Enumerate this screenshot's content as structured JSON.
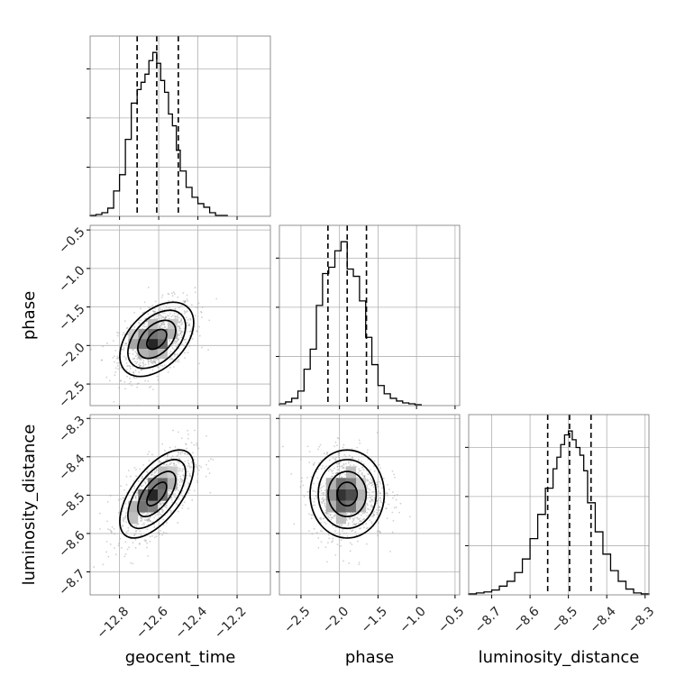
{
  "chart_data": {
    "type": "corner",
    "parameters": [
      "geocent_time",
      "phase",
      "luminosity_distance"
    ],
    "axis_labels": {
      "x": [
        "geocent_time",
        "phase",
        "luminosity_distance"
      ],
      "y": [
        "phase",
        "luminosity_distance"
      ]
    },
    "ranges": {
      "geocent_time": [
        -12.95,
        -12.03
      ],
      "phase": [
        -2.78,
        -0.44
      ],
      "luminosity_distance": [
        -8.76,
        -8.29
      ]
    },
    "ticks": {
      "geocent_time": [
        -12.8,
        -12.6,
        -12.4,
        -12.2
      ],
      "phase": [
        -2.5,
        -2.0,
        -1.5,
        -1.0,
        -0.5
      ],
      "luminosity_distance": [
        -8.7,
        -8.6,
        -8.5,
        -8.4,
        -8.3
      ]
    },
    "tick_labels": {
      "geocent_time": [
        "−12.8",
        "−12.6",
        "−12.4",
        "−12.2"
      ],
      "phase": [
        "−2.5",
        "−2.0",
        "−1.5",
        "−1.0",
        "−0.5"
      ],
      "luminosity_distance": [
        "−8.7",
        "−8.6",
        "−8.5",
        "−8.4",
        "−8.3"
      ]
    },
    "quantiles": {
      "geocent_time": [
        -12.71,
        -12.61,
        -12.5
      ],
      "phase": [
        -2.15,
        -1.9,
        -1.65
      ],
      "luminosity_distance": [
        -8.554,
        -8.497,
        -8.441
      ]
    },
    "histograms": {
      "geocent_time": {
        "edges": [
          -12.95,
          -12.92,
          -12.89,
          -12.86,
          -12.83,
          -12.8,
          -12.77,
          -12.74,
          -12.71,
          -12.69,
          -12.67,
          -12.65,
          -12.63,
          -12.61,
          -12.59,
          -12.57,
          -12.55,
          -12.53,
          -12.51,
          -12.49,
          -12.46,
          -12.43,
          -12.4,
          -12.37,
          -12.34,
          -12.31,
          -12.28,
          -12.25
        ],
        "counts": [
          1,
          2,
          4,
          9,
          28,
          46,
          85,
          125,
          140,
          148,
          157,
          172,
          181,
          169,
          150,
          137,
          113,
          100,
          73,
          50,
          32,
          21,
          14,
          10,
          4,
          1,
          1
        ]
      },
      "phase": {
        "edges": [
          -2.78,
          -2.7,
          -2.62,
          -2.54,
          -2.46,
          -2.38,
          -2.3,
          -2.22,
          -2.14,
          -2.06,
          -1.98,
          -1.9,
          -1.82,
          -1.74,
          -1.66,
          -1.58,
          -1.5,
          -1.42,
          -1.34,
          -1.26,
          -1.18,
          -1.1,
          -1.02,
          -0.94
        ],
        "counts": [
          2,
          4,
          8,
          16,
          40,
          62,
          110,
          145,
          152,
          170,
          180,
          150,
          142,
          115,
          75,
          45,
          22,
          13,
          8,
          5,
          3,
          2,
          1
        ]
      },
      "luminosity_distance": {
        "edges": [
          -8.76,
          -8.74,
          -8.72,
          -8.7,
          -8.68,
          -8.66,
          -8.64,
          -8.62,
          -8.6,
          -8.58,
          -8.56,
          -8.54,
          -8.53,
          -8.52,
          -8.51,
          -8.5,
          -8.49,
          -8.48,
          -8.47,
          -8.46,
          -8.45,
          -8.43,
          -8.41,
          -8.39,
          -8.37,
          -8.35,
          -8.33,
          -8.31,
          -8.29
        ],
        "counts": [
          1,
          2,
          3,
          5,
          9,
          14,
          23,
          37,
          58,
          83,
          110,
          130,
          142,
          155,
          165,
          169,
          160,
          152,
          144,
          128,
          95,
          65,
          42,
          25,
          14,
          6,
          2,
          1
        ]
      }
    },
    "joint": [
      {
        "x": "geocent_time",
        "y": "phase",
        "center": [
          -12.61,
          -1.92
        ],
        "sigma": [
          0.092,
          0.235
        ],
        "rho": 0.45,
        "hist_cells": [
          [
            -12.73,
            -1.98,
            0.35
          ],
          [
            -12.68,
            -1.98,
            0.55
          ],
          [
            -12.63,
            -1.98,
            0.85
          ],
          [
            -12.58,
            -1.98,
            0.6
          ],
          [
            -12.68,
            -1.85,
            0.4
          ],
          [
            -12.63,
            -1.85,
            0.55
          ],
          [
            -12.58,
            -1.85,
            0.5
          ],
          [
            -12.53,
            -1.85,
            0.3
          ],
          [
            -12.68,
            -2.11,
            0.3
          ],
          [
            -12.63,
            -2.11,
            0.35
          ],
          [
            -12.58,
            -2.11,
            0.25
          ],
          [
            -12.63,
            -1.72,
            0.25
          ],
          [
            -12.53,
            -1.72,
            0.2
          ],
          [
            -12.73,
            -1.85,
            0.2
          ]
        ]
      },
      {
        "x": "geocent_time",
        "y": "luminosity_distance",
        "center": [
          -12.61,
          -8.497
        ],
        "sigma": [
          0.092,
          0.056
        ],
        "rho": 0.62,
        "hist_cells": [
          [
            -12.73,
            -8.53,
            0.3
          ],
          [
            -12.68,
            -8.53,
            0.55
          ],
          [
            -12.63,
            -8.53,
            0.5
          ],
          [
            -12.68,
            -8.5,
            0.55
          ],
          [
            -12.63,
            -8.5,
            0.85
          ],
          [
            -12.58,
            -8.5,
            0.55
          ],
          [
            -12.63,
            -8.47,
            0.5
          ],
          [
            -12.58,
            -8.47,
            0.6
          ],
          [
            -12.53,
            -8.47,
            0.3
          ],
          [
            -12.73,
            -8.56,
            0.25
          ],
          [
            -12.53,
            -8.44,
            0.2
          ],
          [
            -12.58,
            -8.44,
            0.25
          ]
        ]
      },
      {
        "x": "phase",
        "y": "luminosity_distance",
        "center": [
          -1.9,
          -8.497
        ],
        "sigma": [
          0.235,
          0.056
        ],
        "rho": 0.0,
        "hist_cells": [
          [
            -2.11,
            -8.53,
            0.3
          ],
          [
            -1.98,
            -8.53,
            0.6
          ],
          [
            -1.85,
            -8.53,
            0.55
          ],
          [
            -1.72,
            -8.53,
            0.25
          ],
          [
            -2.11,
            -8.5,
            0.45
          ],
          [
            -1.98,
            -8.5,
            0.8
          ],
          [
            -1.85,
            -8.5,
            0.7
          ],
          [
            -1.72,
            -8.5,
            0.3
          ],
          [
            -2.11,
            -8.47,
            0.3
          ],
          [
            -1.98,
            -8.47,
            0.55
          ],
          [
            -1.85,
            -8.47,
            0.5
          ],
          [
            -1.72,
            -8.47,
            0.2
          ],
          [
            -1.98,
            -8.56,
            0.25
          ],
          [
            -1.85,
            -8.44,
            0.25
          ]
        ]
      }
    ],
    "grid": true
  }
}
